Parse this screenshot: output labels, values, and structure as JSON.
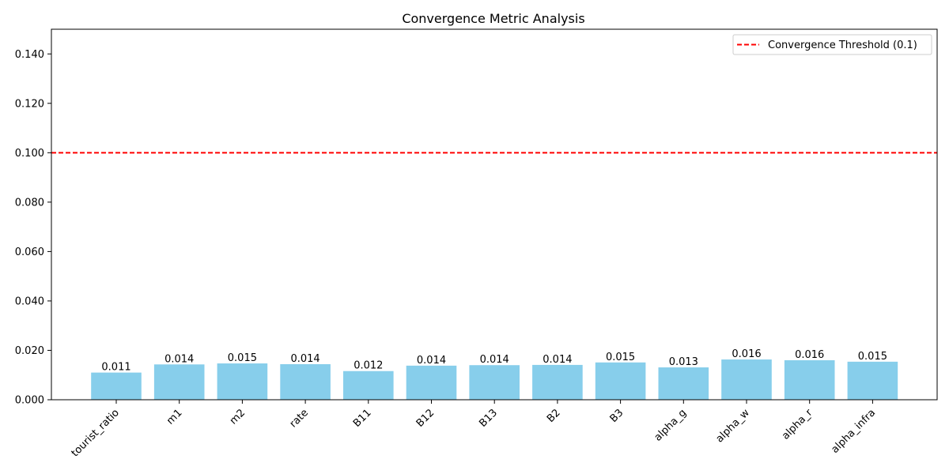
{
  "chart_data": {
    "type": "bar",
    "title": "Convergence Metric Analysis",
    "xlabel": "",
    "ylabel": "",
    "categories": [
      "tourist_ratio",
      "m1",
      "m2",
      "rate",
      "B11",
      "B12",
      "B13",
      "B2",
      "B3",
      "alpha_g",
      "alpha_w",
      "alpha_r",
      "alpha_infra"
    ],
    "values": [
      0.011,
      0.0143,
      0.0147,
      0.0144,
      0.0116,
      0.0138,
      0.014,
      0.0141,
      0.0151,
      0.0131,
      0.0163,
      0.016,
      0.0154
    ],
    "value_labels": [
      "0.011",
      "0.014",
      "0.015",
      "0.014",
      "0.012",
      "0.014",
      "0.014",
      "0.014",
      "0.015",
      "0.013",
      "0.016",
      "0.016",
      "0.015"
    ],
    "ylim": [
      0,
      0.15
    ],
    "yticks": [
      0,
      0.02,
      0.04,
      0.06,
      0.08,
      0.1,
      0.12,
      0.14
    ],
    "ytick_labels": [
      "0.000",
      "0.020",
      "0.040",
      "0.060",
      "0.080",
      "0.100",
      "0.120",
      "0.140"
    ],
    "bar_color": "#87ceeb",
    "threshold": {
      "value": 0.1,
      "label": "Convergence Threshold (0.1)",
      "color": "#ff0000",
      "style": "dashed"
    },
    "legend_position": "top-right",
    "grid": false
  }
}
